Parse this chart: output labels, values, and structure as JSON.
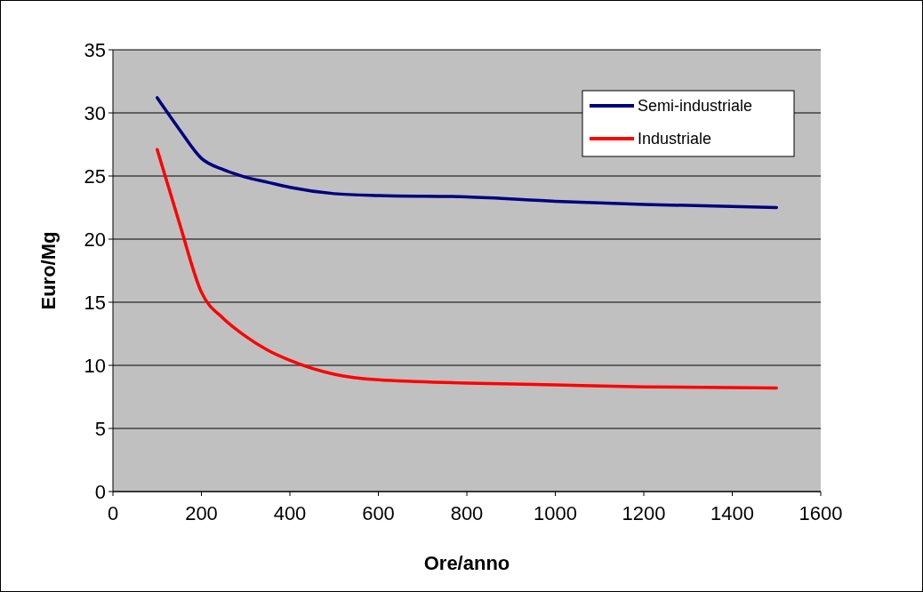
{
  "chart_data": {
    "type": "line",
    "xlabel": "Ore/anno",
    "ylabel": "Euro/Mg",
    "x": [
      100,
      150,
      200,
      250,
      300,
      350,
      400,
      500,
      600,
      800,
      1000,
      1200,
      1500
    ],
    "series": [
      {
        "name": "Semi-industriale",
        "color": "#000080",
        "values": [
          31.2,
          28.7,
          26.4,
          25.5,
          24.9,
          24.5,
          24.1,
          23.6,
          23.45,
          23.35,
          23.0,
          22.75,
          22.5
        ]
      },
      {
        "name": "Industriale",
        "color": "#ff0000",
        "values": [
          27.1,
          21.3,
          15.8,
          13.7,
          12.3,
          11.2,
          10.4,
          9.3,
          8.85,
          8.6,
          8.45,
          8.3,
          8.2
        ]
      }
    ],
    "xlim": [
      0,
      1600
    ],
    "xticks": [
      0,
      200,
      400,
      600,
      800,
      1000,
      1200,
      1400,
      1600
    ],
    "ylim": [
      0,
      35
    ],
    "yticks": [
      0,
      5,
      10,
      15,
      20,
      25,
      30,
      35
    ],
    "grid": "y",
    "legend": "top right",
    "marker": "none",
    "line_style": "solid"
  }
}
